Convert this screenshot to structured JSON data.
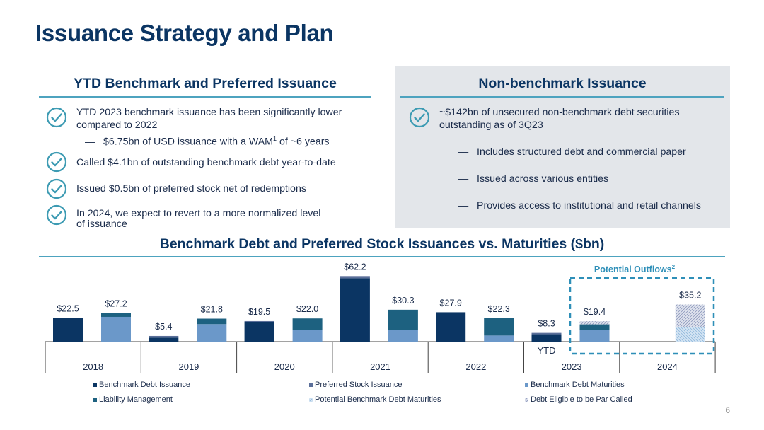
{
  "slide": {
    "title": "Issuance Strategy and Plan",
    "page_number": "6"
  },
  "left_panel": {
    "heading": "YTD Benchmark and Preferred Issuance",
    "bullets": [
      {
        "line1": "YTD 2023 benchmark issuance has been significantly lower",
        "line2": "compared to 2022"
      },
      {
        "line1": "Called $4.1bn of outstanding benchmark debt year-to-date",
        "line2": ""
      },
      {
        "line1": "Issued $0.5bn of preferred stock net of redemptions",
        "line2": ""
      },
      {
        "line1": "In 2024, we expect to revert to a more normalized level",
        "line2": "of issuance"
      }
    ],
    "sub_bullet": {
      "dash": "—",
      "before": "$6.75bn of USD issuance with a WAM",
      "sup": "1",
      "after": " of ~6 years"
    }
  },
  "right_panel": {
    "heading": "Non-benchmark Issuance",
    "bullet": {
      "line1": "~$142bn of unsecured non-benchmark debt securities",
      "line2": "outstanding as of 3Q23"
    },
    "sub_bullets": [
      {
        "dash": "—",
        "text": "Includes structured debt and commercial paper"
      },
      {
        "dash": "—",
        "text": "Issued across various entities"
      },
      {
        "dash": "—",
        "text": "Provides access to institutional and retail channels"
      }
    ]
  },
  "chart_heading": "Benchmark Debt and Preferred Stock Issuances vs. Maturities ($bn)",
  "chart_data": {
    "type": "bar",
    "title": "Benchmark Debt and Preferred Stock Issuances vs. Maturities ($bn)",
    "categories": [
      "2018",
      "2019",
      "2020",
      "2021",
      "2022",
      "2023",
      "2024"
    ],
    "ylim": [
      0,
      64
    ],
    "colors": {
      "benchmark_issuance": "#0b3563",
      "preferred": "#5b6f9a",
      "maturities": "#6b98c9",
      "liability_mgmt": "#1d6180",
      "potential_maturities": "#bcd4ec",
      "par_called": "#c9d0e4",
      "accent": "#2e8fb8"
    },
    "issuance_bars": [
      {
        "category": "2018",
        "benchmark": 22.5,
        "preferred": 0.0,
        "label": "$22.5"
      },
      {
        "category": "2019",
        "benchmark": 3.8,
        "preferred": 1.6,
        "label": "$5.4"
      },
      {
        "category": "2020",
        "benchmark": 18.3,
        "preferred": 1.2,
        "label": "$19.5"
      },
      {
        "category": "2021",
        "benchmark": 60.2,
        "preferred": 2.0,
        "label": "$62.2"
      },
      {
        "category": "2022",
        "benchmark": 27.9,
        "preferred": 0.0,
        "label": "$27.9"
      },
      {
        "category": "2023",
        "benchmark": 7.0,
        "preferred": 1.3,
        "label": "$8.3",
        "sublabel": "YTD"
      }
    ],
    "maturity_bars": [
      {
        "category": "2018",
        "maturities": 23.5,
        "liability": 3.7,
        "potential": 0,
        "par_called": 0,
        "label": "$27.2"
      },
      {
        "category": "2019",
        "maturities": 16.6,
        "liability": 5.2,
        "potential": 0,
        "par_called": 0,
        "label": "$21.8"
      },
      {
        "category": "2020",
        "maturities": 11.3,
        "liability": 10.7,
        "potential": 0,
        "par_called": 0,
        "label": "$22.0"
      },
      {
        "category": "2021",
        "maturities": 11.0,
        "liability": 19.3,
        "potential": 0,
        "par_called": 0,
        "label": "$30.3"
      },
      {
        "category": "2022",
        "maturities": 5.8,
        "liability": 16.5,
        "potential": 0,
        "par_called": 0,
        "label": "$22.3"
      },
      {
        "category": "2023",
        "maturities": 11.2,
        "liability": 5.2,
        "potential": 0,
        "par_called": 3.0,
        "label": "$19.4"
      },
      {
        "category": "2024",
        "maturities": 0,
        "liability": 0,
        "potential": 13.6,
        "par_called": 21.6,
        "label": "$35.2"
      }
    ],
    "annotation": {
      "text": "Potential Outflows",
      "sup": "2"
    },
    "legend": [
      {
        "name": "Benchmark Debt Issuance",
        "color": "#0b3563",
        "pattern": false
      },
      {
        "name": "Preferred Stock Issuance",
        "color": "#5b6f9a",
        "pattern": false
      },
      {
        "name": "Benchmark Debt Maturities",
        "color": "#6b98c9",
        "pattern": false
      },
      {
        "name": "Liability Management",
        "color": "#1d6180",
        "pattern": false
      },
      {
        "name": "Potential Benchmark Debt Maturities",
        "color": "#bcd4ec",
        "pattern": true
      },
      {
        "name": "Debt Eligible to be Par Called",
        "color": "#c9d0e4",
        "pattern": true
      }
    ]
  }
}
